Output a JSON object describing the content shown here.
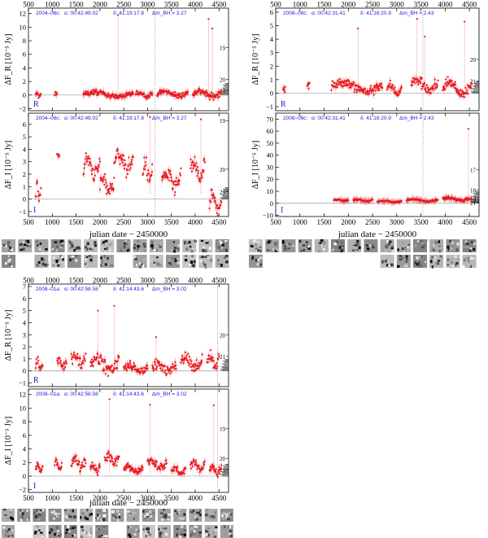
{
  "figure": {
    "xlabel": "julian date − 2450000",
    "colors": {
      "data": "#e8191f",
      "title": "#1a1adc",
      "frame": "#000000",
      "zero": "#9a9a9a",
      "vline": "#6a6a6a"
    }
  },
  "chart_data": [
    {
      "id": "2004-06c",
      "type": "scatter",
      "title_name": "2004–06c:",
      "title_alpha": "α: 00:42:49.02",
      "title_delta": "δ: 41:19:17.8",
      "title_mag": "Δm_BH = 3.27",
      "xlim": [
        500,
        4700
      ],
      "xticks": [
        500,
        1000,
        1500,
        2000,
        2500,
        3000,
        3500,
        4000,
        4500
      ],
      "xtick_labels": [
        "500",
        "1000",
        "1500",
        "2000",
        "2500",
        "3000",
        "3500",
        "4000",
        "4500"
      ],
      "vline_x": 3160,
      "bands": [
        {
          "band": "R",
          "ylabel": "ΔF_R [10⁻⁵ Jy]",
          "ylim": [
            -2.3,
            12.8
          ],
          "yticks": [
            -2,
            0,
            2,
            4,
            6,
            8,
            10,
            12
          ],
          "ytick_labels": [
            "−2",
            "0",
            "2",
            "4",
            "6",
            "8",
            "10",
            "12"
          ],
          "mag_labels": [
            "19",
            "20",
            "21"
          ],
          "mag_y": [
            7.0,
            2.3,
            0.7
          ],
          "band_label": "R",
          "segments": [
            [
              650,
              760,
              0,
              0.7
            ],
            [
              1050,
              1100,
              0.2,
              0.6
            ],
            [
              1650,
              2700,
              0.1,
              0.9
            ],
            [
              2750,
              3100,
              0.1,
              0.8
            ],
            [
              3200,
              3850,
              0.2,
              0.9
            ],
            [
              3950,
              4550,
              0.2,
              1.2
            ]
          ],
          "spikes": [
            [
              2380,
              11.8
            ],
            [
              4280,
              11.2
            ],
            [
              4360,
              9.8
            ]
          ]
        },
        {
          "band": "I",
          "ylabel": "ΔF_I [10⁻⁵ Jy]",
          "ylim": [
            -1.4,
            6.9
          ],
          "yticks": [
            -1,
            0,
            1,
            2,
            3,
            4,
            5,
            6
          ],
          "ytick_labels": [
            "−1",
            "0",
            "1",
            "2",
            "3",
            "4",
            "5",
            "6"
          ],
          "mag_labels": [
            "19",
            "20",
            "21"
          ],
          "mag_y": [
            6.3,
            2.4,
            0.6
          ],
          "band_label": "I",
          "segments": [
            [
              650,
              760,
              0.5,
              1.5
            ],
            [
              1100,
              1150,
              3.5,
              0.3
            ],
            [
              1650,
              2000,
              2.6,
              1.6
            ],
            [
              2000,
              2300,
              1.2,
              1.5
            ],
            [
              2300,
              2700,
              3.0,
              1.5
            ],
            [
              2900,
              3100,
              2.2,
              1.8
            ],
            [
              3300,
              3700,
              1.5,
              1.6
            ],
            [
              3900,
              4200,
              2.3,
              1.8
            ],
            [
              4300,
              4550,
              -0.3,
              1.4
            ]
          ],
          "spikes": [
            [
              3050,
              6.6
            ],
            [
              4120,
              6.4
            ]
          ]
        }
      ]
    },
    {
      "id": "2008-06c",
      "type": "scatter",
      "title_name": "2008–06c:",
      "title_alpha": "α: 00:42:31.41",
      "title_delta": "δ: 41:16:20.9",
      "title_mag": "Δm_BH = 2.43",
      "xlim": [
        500,
        4700
      ],
      "xticks": [
        500,
        1000,
        1500,
        2000,
        2500,
        3000,
        3500,
        4000,
        4500
      ],
      "xtick_labels": [
        "500",
        "1000",
        "1500",
        "2000",
        "2500",
        "3000",
        "3500",
        "4000",
        "4500"
      ],
      "vline_x": 3540,
      "bands": [
        {
          "band": "R",
          "ylabel": "ΔF_R [10⁻⁵ Jy]",
          "ylim": [
            -1.3,
            6.3
          ],
          "yticks": [
            -1,
            0,
            1,
            2,
            3,
            4,
            5,
            6
          ],
          "ytick_labels": [
            "−1",
            "0",
            "1",
            "2",
            "3",
            "4",
            "5",
            "6"
          ],
          "mag_labels": [
            "20",
            "21"
          ],
          "mag_y": [
            2.5,
            0.9
          ],
          "band_label": "R",
          "segments": [
            [
              650,
              700,
              0.3,
              0.4
            ],
            [
              1150,
              1200,
              0.6,
              0.4
            ],
            [
              1650,
              2700,
              0.5,
              1.0
            ],
            [
              2800,
              3100,
              0.3,
              0.8
            ],
            [
              3300,
              3850,
              0.6,
              1.0
            ],
            [
              3950,
              4550,
              0.4,
              1.1
            ]
          ],
          "spikes": [
            [
              2200,
              4.8
            ],
            [
              3420,
              5.5
            ],
            [
              3580,
              4.2
            ],
            [
              4400,
              5.3
            ]
          ]
        },
        {
          "band": "I",
          "ylabel": "ΔF_I [10⁻⁵ Jy]",
          "ylim": [
            -11,
            75
          ],
          "yticks": [
            -10,
            0,
            10,
            20,
            30,
            40,
            50,
            60,
            70
          ],
          "ytick_labels": [
            "−10",
            "0",
            "10",
            "20",
            "30",
            "40",
            "50",
            "60",
            "70"
          ],
          "mag_labels": [
            "17",
            "18",
            "19",
            "20",
            "21"
          ],
          "mag_y": [
            28,
            11,
            5,
            2.5,
            1
          ],
          "band_label": "I",
          "segments": [
            [
              1700,
              2000,
              2.5,
              1.5
            ],
            [
              2100,
              2500,
              2.5,
              1.5
            ],
            [
              2600,
              3100,
              1.5,
              1.5
            ],
            [
              3200,
              3850,
              2.5,
              1.8
            ],
            [
              3950,
              4550,
              3.5,
              3.0
            ]
          ],
          "spikes": [
            [
              4480,
              62
            ]
          ]
        }
      ]
    },
    {
      "id": "2008-01a",
      "type": "scatter",
      "title_name": "2008–01a:",
      "title_alpha": "α: 00:42:58.58",
      "title_delta": "δ: 41:14:43.6",
      "title_mag": "Δm_BH = 3.02",
      "xlim": [
        500,
        4700
      ],
      "xticks": [
        500,
        1000,
        1500,
        2000,
        2500,
        3000,
        3500,
        4000,
        4500
      ],
      "xtick_labels": [
        "500",
        "1000",
        "1500",
        "2000",
        "2500",
        "3000",
        "3500",
        "4000",
        "4500"
      ],
      "vline_x": 4470,
      "bands": [
        {
          "band": "R",
          "ylabel": "ΔF_R [10⁻⁵ Jy]",
          "ylim": [
            -1.3,
            7.2
          ],
          "yticks": [
            -1,
            0,
            1,
            2,
            3,
            4,
            5,
            6,
            7
          ],
          "ytick_labels": [
            "−1",
            "0",
            "1",
            "2",
            "3",
            "4",
            "5",
            "6",
            "7"
          ],
          "mag_labels": [
            "20",
            "21"
          ],
          "mag_y": [
            3.0,
            1.2
          ],
          "band_label": "R",
          "segments": [
            [
              650,
              800,
              0.5,
              1.0
            ],
            [
              1100,
              1300,
              0.6,
              1.0
            ],
            [
              1400,
              1700,
              1.0,
              1.2
            ],
            [
              1800,
              2400,
              0.6,
              1.4
            ],
            [
              2500,
              3000,
              0.2,
              0.8
            ],
            [
              3100,
              3600,
              0.3,
              1.0
            ],
            [
              3700,
              4150,
              0.7,
              1.2
            ],
            [
              4250,
              4500,
              0.8,
              1.5
            ]
          ],
          "spikes": [
            [
              1960,
              5.0
            ],
            [
              2300,
              5.4
            ],
            [
              3180,
              2.8
            ]
          ]
        },
        {
          "band": "I",
          "ylabel": "ΔF_I [10⁻⁵ Jy]",
          "ylim": [
            -2.4,
            12.8
          ],
          "yticks": [
            -2,
            0,
            2,
            4,
            6,
            8,
            10,
            12
          ],
          "ytick_labels": [
            "−2",
            "0",
            "2",
            "4",
            "6",
            "8",
            "10",
            "12"
          ],
          "mag_labels": [
            "19",
            "20",
            "21"
          ],
          "mag_y": [
            7.0,
            2.6,
            1.0
          ],
          "band_label": "I",
          "segments": [
            [
              650,
              800,
              1.2,
              1.2
            ],
            [
              1050,
              1200,
              1.5,
              1.5
            ],
            [
              1400,
              1700,
              2.0,
              1.8
            ],
            [
              1800,
              2000,
              1.2,
              1.6
            ],
            [
              2100,
              2400,
              2.5,
              1.8
            ],
            [
              2500,
              2900,
              1.0,
              1.2
            ],
            [
              3000,
              3400,
              1.8,
              1.5
            ],
            [
              3500,
              3800,
              0.8,
              1.2
            ],
            [
              3900,
              4200,
              1.5,
              1.5
            ],
            [
              4300,
              4550,
              1.0,
              1.5
            ]
          ],
          "spikes": [
            [
              2200,
              11.3
            ],
            [
              3050,
              10.5
            ],
            [
              4390,
              10.4
            ]
          ]
        }
      ]
    }
  ]
}
